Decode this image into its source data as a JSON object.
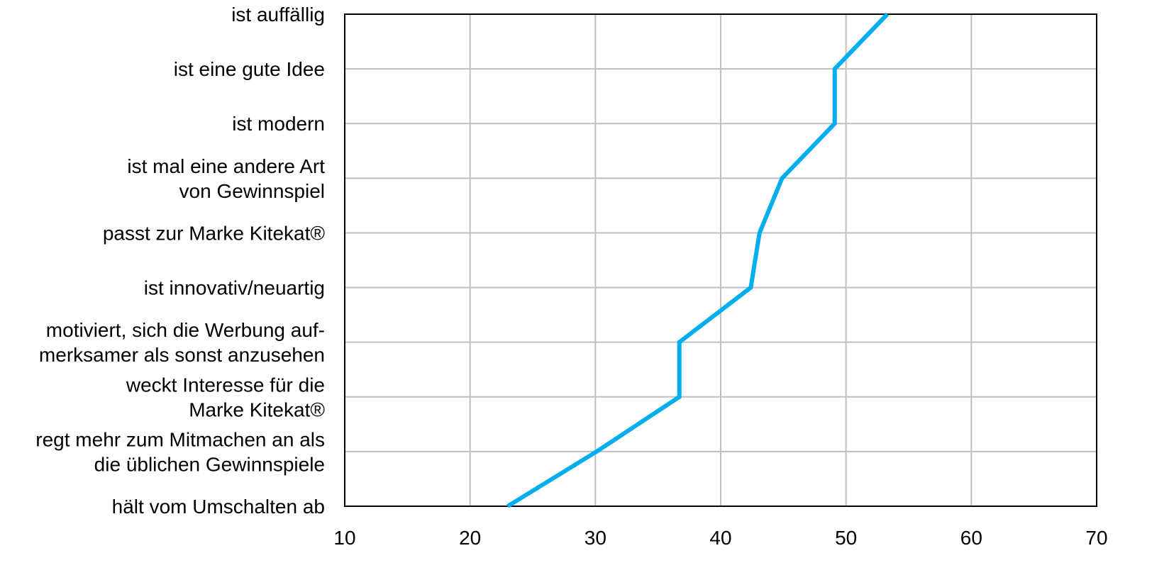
{
  "chart_data": {
    "type": "line",
    "orientation": "horizontal",
    "title": "",
    "xlabel": "",
    "ylabel": "",
    "xlim": [
      10,
      70
    ],
    "x_ticks": [
      "10",
      "20",
      "30",
      "40",
      "50",
      "60",
      "70"
    ],
    "grid": true,
    "legend": "none",
    "line_color": "#00AEEF",
    "categories": [
      [
        "ist auffällig"
      ],
      [
        "ist eine gute Idee"
      ],
      [
        "ist modern"
      ],
      [
        "ist mal eine andere Art",
        "von Gewinnspiel"
      ],
      [
        "passt zur Marke Kitekat®"
      ],
      [
        "ist innovativ/neuartig"
      ],
      [
        "motiviert, sich die Werbung auf-",
        "merksamer als sonst anzusehen"
      ],
      [
        "weckt Interesse für die",
        "Marke Kitekat®"
      ],
      [
        "regt mehr zum Mitmachen an als",
        "die üblichen Gewinnspiele"
      ],
      [
        "hält vom Umschalten ab"
      ]
    ],
    "series": [
      {
        "values": [
          53.3,
          49.1,
          49.1,
          44.9,
          43.1,
          42.4,
          36.7,
          36.7,
          30.1,
          23.0
        ]
      }
    ]
  }
}
